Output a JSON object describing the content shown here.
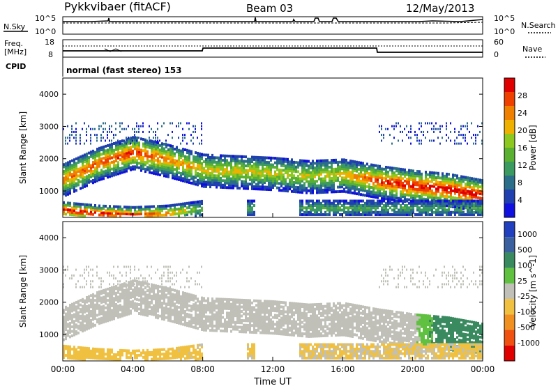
{
  "header": {
    "station": "Pykkvibaer (fitACF)",
    "beam": "Beam 03",
    "date": "12/May/2013"
  },
  "top_panel": {
    "nsky_label": "N.Sky",
    "nsearch_label": "N.Search",
    "tick_high": "10^5",
    "tick_low": "10^0"
  },
  "freq_panel": {
    "freq_label": "Freq.",
    "freq_unit": "[MHz]",
    "nave_label": "Nave",
    "left_ticks": [
      "18",
      "8"
    ],
    "right_ticks": [
      "60",
      "0"
    ]
  },
  "cpid": {
    "label": "CPID",
    "value": "normal (fast stereo) 153"
  },
  "colors": {
    "power_scale": [
      "#1010e0",
      "#2040b0",
      "#2a6e8a",
      "#3a9a60",
      "#5ab030",
      "#8cc820",
      "#f0b000",
      "#f08000",
      "#f04000",
      "#e00000"
    ],
    "velocity_scale": [
      "#2040c0",
      "#3a60a0",
      "#3a8a60",
      "#60c040",
      "#c0c0b8",
      "#f0c040",
      "#f09020",
      "#f05010",
      "#e00000"
    ]
  },
  "chart_data": [
    {
      "type": "heatmap",
      "title": "",
      "ylabel": "Slant Range [km]",
      "xlabel": "",
      "xlim": [
        "00:00",
        "00:00"
      ],
      "ylim": [
        180,
        4500
      ],
      "yticks": [
        "1000",
        "2000",
        "3000",
        "4000"
      ],
      "colorbar": {
        "label": "Power [dB]",
        "ticks": [
          "4",
          "8",
          "12",
          "16",
          "20",
          "24",
          "28"
        ],
        "range": [
          0,
          30
        ]
      },
      "echo_bands": [
        {
          "name": "main",
          "x": [
            0,
            2,
            4,
            6,
            8,
            10,
            12,
            14,
            16,
            18,
            20,
            22,
            24
          ],
          "center_km": [
            1400,
            1900,
            2250,
            2000,
            1700,
            1650,
            1600,
            1500,
            1550,
            1350,
            1200,
            1100,
            900
          ],
          "peak_db": [
            22,
            24,
            26,
            22,
            18,
            18,
            17,
            16,
            18,
            26,
            28,
            28,
            28
          ]
        },
        {
          "name": "near",
          "x": [
            0,
            2,
            4,
            6,
            8
          ],
          "center_km": [
            450,
            350,
            300,
            350,
            500
          ],
          "peak_db": [
            28,
            28,
            26,
            22,
            10
          ]
        }
      ]
    },
    {
      "type": "heatmap",
      "title": "",
      "ylabel": "Slant Range [km]",
      "xlabel": "Time UT",
      "xticks": [
        "00:00",
        "04:00",
        "08:00",
        "12:00",
        "16:00",
        "20:00",
        "00:00"
      ],
      "yticks": [
        "1000",
        "2000",
        "3000",
        "4000"
      ],
      "ylim": [
        180,
        4500
      ],
      "colorbar": {
        "label": "Velocity [m s^-1]",
        "ticks": [
          "1000",
          "500",
          "100",
          "25",
          "-25",
          "-100",
          "-500",
          "-1000"
        ],
        "range": [
          -1000,
          1000
        ]
      },
      "echo_bands": [
        {
          "name": "main",
          "x": [
            0,
            2,
            4,
            6,
            8,
            10,
            12,
            14,
            16,
            18,
            20,
            22,
            24
          ],
          "center_km": [
            1400,
            1900,
            2250,
            2000,
            1700,
            1650,
            1600,
            1500,
            1550,
            1350,
            1200,
            1100,
            900
          ],
          "velocity": [
            0,
            0,
            0,
            0,
            0,
            0,
            0,
            0,
            0,
            0,
            0,
            200,
            300
          ]
        },
        {
          "name": "near",
          "x": [
            0,
            2,
            4,
            6,
            8
          ],
          "center_km": [
            450,
            350,
            300,
            350,
            500
          ],
          "velocity": [
            -80,
            -60,
            -60,
            -50,
            -30
          ]
        }
      ]
    }
  ]
}
